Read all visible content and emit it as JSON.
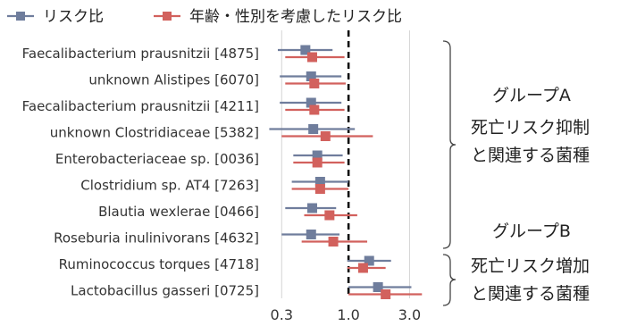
{
  "colors": {
    "crude": "#6f7d9c",
    "adjusted": "#d2615d"
  },
  "legend": [
    {
      "label": "リスク比",
      "color": "#6f7d9c"
    },
    {
      "label": "年齢・性別を考慮したリスク比",
      "color": "#d2615d"
    }
  ],
  "groups": [
    {
      "title": "グループA",
      "lines": [
        "死亡リスク抑制",
        "と関連する菌種"
      ]
    },
    {
      "title": "グループB",
      "lines": [
        "死亡リスク増加",
        "と関連する菌種"
      ]
    }
  ],
  "chart_data": {
    "type": "forest",
    "xscale": "log",
    "xlim": [
      0.22,
      4.6
    ],
    "xticks": [
      0.3,
      1.0,
      3.0
    ],
    "xtick_labels": [
      "0.3",
      "1.0",
      "3.0"
    ],
    "reference_line": 1.0,
    "categories": [
      "Faecalibacterium prausnitzii [4875]",
      "unknown Alistipes [6070]",
      "Faecalibacterium prausnitzii [4211]",
      "unknown Clostridiaceae [5382]",
      "Enterobacteriaceae sp. [0036]",
      "Clostridium sp. AT4 [7263]",
      "Blautia wexlerae [0466]",
      "Roseburia inulinivorans [4632]",
      "Ruminococcus torques [4718]",
      "Lactobacillus gasseri [0725]"
    ],
    "series": [
      {
        "name": "リスク比",
        "estimates": [
          0.46,
          0.51,
          0.51,
          0.53,
          0.57,
          0.6,
          0.52,
          0.51,
          1.45,
          1.7
        ],
        "lower": [
          0.28,
          0.29,
          0.29,
          0.24,
          0.37,
          0.36,
          0.32,
          0.3,
          0.98,
          1.0
        ],
        "upper": [
          0.75,
          0.88,
          0.88,
          1.12,
          0.9,
          1.0,
          0.8,
          0.85,
          2.15,
          3.1
        ]
      },
      {
        "name": "年齢・性別を考慮したリスク比",
        "estimates": [
          0.52,
          0.54,
          0.54,
          0.66,
          0.57,
          0.6,
          0.71,
          0.76,
          1.3,
          1.95
        ],
        "lower": [
          0.32,
          0.32,
          0.32,
          0.3,
          0.37,
          0.36,
          0.45,
          0.43,
          0.98,
          1.0
        ],
        "upper": [
          0.93,
          0.95,
          0.93,
          1.55,
          0.93,
          1.0,
          1.17,
          1.4,
          1.95,
          3.75
        ]
      }
    ]
  }
}
